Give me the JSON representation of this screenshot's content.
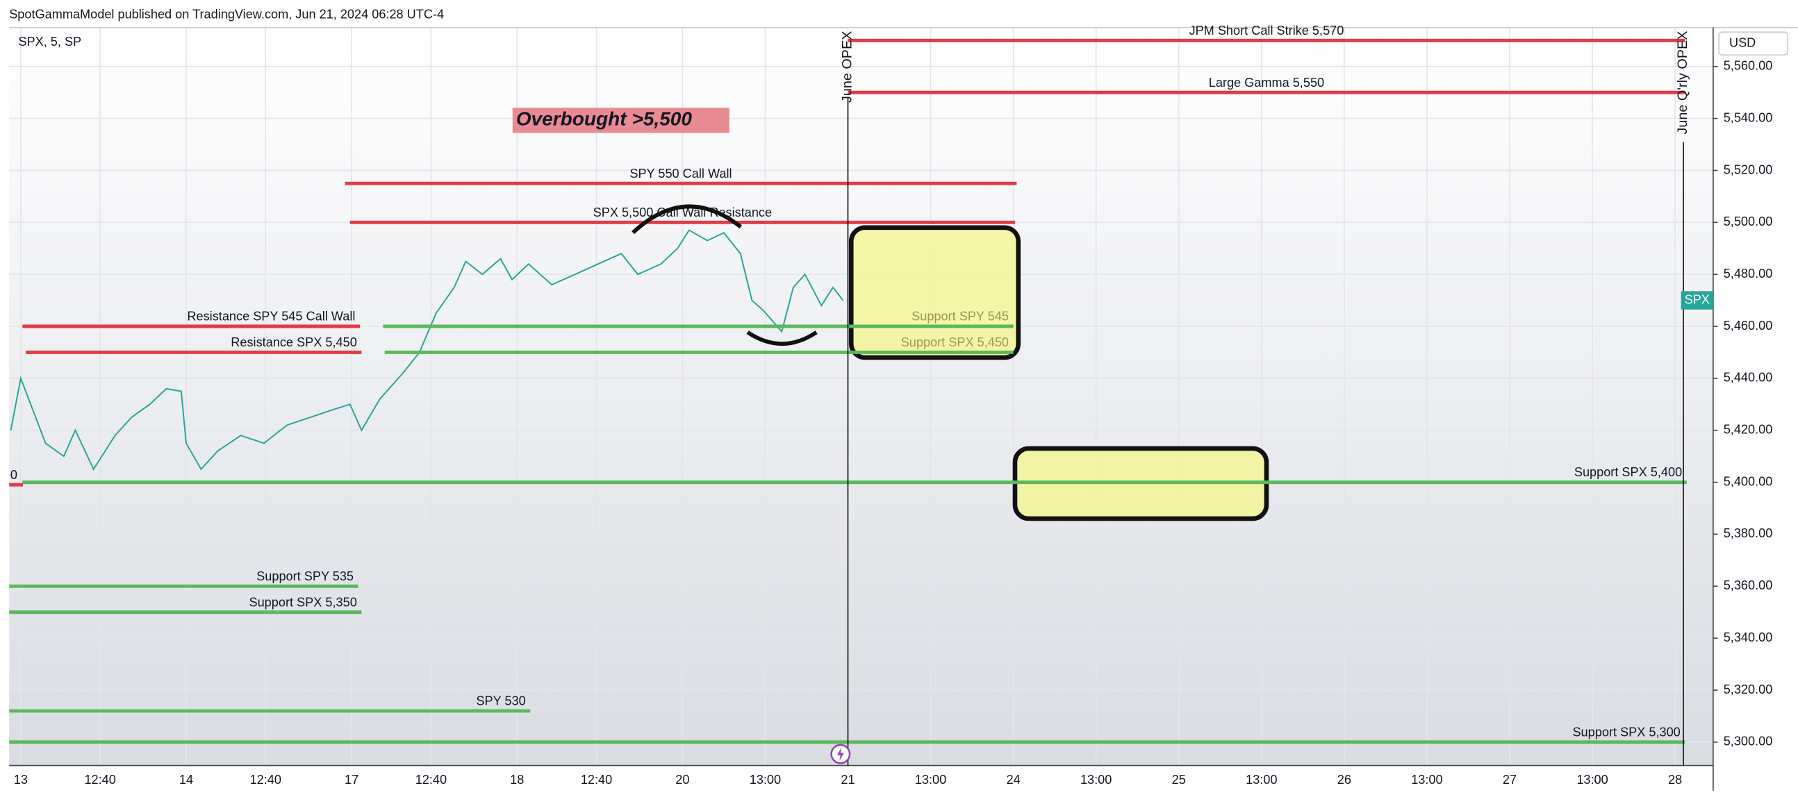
{
  "header": {
    "publisher": "SpotGammaModel published on TradingView.com, Jun 21, 2024 06:28 UTC-4"
  },
  "chart_data": {
    "type": "line",
    "symbol": "SPX, 5, SP",
    "currency": "USD",
    "grid": true,
    "series": [
      {
        "name": "SPX",
        "color": "#26a69a",
        "x": [
          -0.06,
          0,
          0.15,
          0.26,
          0.33,
          0.44,
          0.57,
          0.67,
          0.78,
          0.88,
          0.97,
          1.0,
          1.09,
          1.19,
          1.33,
          1.47,
          1.61,
          1.75,
          1.89,
          1.99,
          2.06,
          2.17,
          2.31,
          2.41,
          2.51,
          2.62,
          2.69,
          2.79,
          2.9,
          2.97,
          3.07,
          3.21,
          3.35,
          3.49,
          3.63,
          3.73,
          3.87,
          3.97,
          4.04,
          4.15,
          4.25,
          4.35,
          4.42,
          4.49,
          4.6,
          4.67,
          4.74,
          4.84,
          4.91,
          4.97
        ],
        "values": [
          5420,
          5440,
          5415,
          5410,
          5420,
          5405,
          5418,
          5425,
          5430,
          5436,
          5435,
          5415,
          5405,
          5412,
          5418,
          5415,
          5422,
          5425,
          5428,
          5430,
          5420,
          5432,
          5442,
          5450,
          5465,
          5475,
          5485,
          5480,
          5486,
          5478,
          5484,
          5476,
          5480,
          5484,
          5488,
          5480,
          5484,
          5490,
          5497,
          5493,
          5496,
          5488,
          5470,
          5466,
          5458,
          5475,
          5480,
          5468,
          5475,
          5470
        ]
      }
    ],
    "xlim": [
      -0.07,
      10.23
    ],
    "xticks": [
      {
        "value": 0,
        "label": "13"
      },
      {
        "value": 0.48,
        "label": "12:40"
      },
      {
        "value": 1,
        "label": "14"
      },
      {
        "value": 1.48,
        "label": "12:40"
      },
      {
        "value": 2,
        "label": "17"
      },
      {
        "value": 2.48,
        "label": "12:40"
      },
      {
        "value": 3,
        "label": "18"
      },
      {
        "value": 3.48,
        "label": "12:40"
      },
      {
        "value": 4,
        "label": "20"
      },
      {
        "value": 4.5,
        "label": "13:00"
      },
      {
        "value": 5,
        "label": "21"
      },
      {
        "value": 5.5,
        "label": "13:00"
      },
      {
        "value": 6,
        "label": "24"
      },
      {
        "value": 6.5,
        "label": "13:00"
      },
      {
        "value": 7,
        "label": "25"
      },
      {
        "value": 7.5,
        "label": "13:00"
      },
      {
        "value": 8,
        "label": "26"
      },
      {
        "value": 8.5,
        "label": "13:00"
      },
      {
        "value": 9,
        "label": "27"
      },
      {
        "value": 9.5,
        "label": "13:00"
      },
      {
        "value": 10,
        "label": "28"
      }
    ],
    "ylim": [
      5291,
      5575
    ],
    "yticks": [
      {
        "value": 5300,
        "label": "5,300.00"
      },
      {
        "value": 5320,
        "label": "5,320.00"
      },
      {
        "value": 5340,
        "label": "5,340.00"
      },
      {
        "value": 5360,
        "label": "5,360.00"
      },
      {
        "value": 5380,
        "label": "5,380.00"
      },
      {
        "value": 5400,
        "label": "5,400.00"
      },
      {
        "value": 5420,
        "label": "5,420.00"
      },
      {
        "value": 5440,
        "label": "5,440.00"
      },
      {
        "value": 5460,
        "label": "5,460.00"
      },
      {
        "value": 5480,
        "label": "5,480.00"
      },
      {
        "value": 5500,
        "label": "5,500.00"
      },
      {
        "value": 5520,
        "label": "5,520.00"
      },
      {
        "value": 5540,
        "label": "5,540.00"
      },
      {
        "value": 5560,
        "label": "5,560.00"
      }
    ],
    "levels": [
      {
        "label": "JPM Short Call Strike 5,570",
        "value": 5570,
        "x": [
          5.0,
          10.06
        ],
        "color": "#e03c45"
      },
      {
        "label": "Large Gamma 5,550",
        "value": 5550,
        "x": [
          5.0,
          10.06
        ],
        "color": "#e03c45"
      },
      {
        "label": "SPY 550 Call Wall",
        "value": 5515,
        "x": [
          1.96,
          6.02
        ],
        "color": "#e03c45"
      },
      {
        "label": "SPX 5,500 Call Wall Resistance",
        "value": 5500,
        "x": [
          1.99,
          6.01
        ],
        "color": "#e03c45"
      },
      {
        "label": "Resistance SPY 545 Call Wall",
        "value": 5460,
        "x": [
          0.01,
          2.05
        ],
        "color": "#e03c45"
      },
      {
        "label": "Resistance SPX  5,450",
        "value": 5450,
        "x": [
          0.03,
          2.06
        ],
        "color": "#e03c45"
      },
      {
        "label": "Support SPY 545",
        "value": 5460,
        "x": [
          2.19,
          6.0
        ],
        "color": "#5cb85c"
      },
      {
        "label": "Support SPX 5,450",
        "value": 5450,
        "x": [
          2.2,
          6.0
        ],
        "color": "#5cb85c"
      },
      {
        "label": "Support SPX 5,400",
        "value": 5400,
        "x": [
          0.01,
          10.07
        ],
        "color": "#5cb85c"
      },
      {
        "label": "Support SPY 535",
        "value": 5360,
        "x": [
          -0.07,
          2.04
        ],
        "color": "#5cb85c"
      },
      {
        "label": "Support SPX 5,350",
        "value": 5350,
        "x": [
          -0.07,
          2.06
        ],
        "color": "#5cb85c"
      },
      {
        "label": "SPY 530",
        "value": 5312,
        "x": [
          -0.07,
          3.08
        ],
        "color": "#5cb85c"
      },
      {
        "label": "Support SPX 5,300",
        "value": 5300,
        "x": [
          -0.07,
          10.06
        ],
        "color": "#5cb85c"
      }
    ],
    "verticals": [
      {
        "label": "June OPEX",
        "x": 5.0
      },
      {
        "label": "June Q'rly OPEX",
        "x": 10.05
      }
    ],
    "zones": [
      {
        "x": [
          5.02,
          6.03
        ],
        "y": [
          5448,
          5498
        ]
      },
      {
        "x": [
          6.01,
          7.53
        ],
        "y": [
          5386,
          5413
        ]
      }
    ],
    "annotations": [
      {
        "text": "Overbought >5,500"
      },
      {
        "text": "0"
      }
    ]
  }
}
